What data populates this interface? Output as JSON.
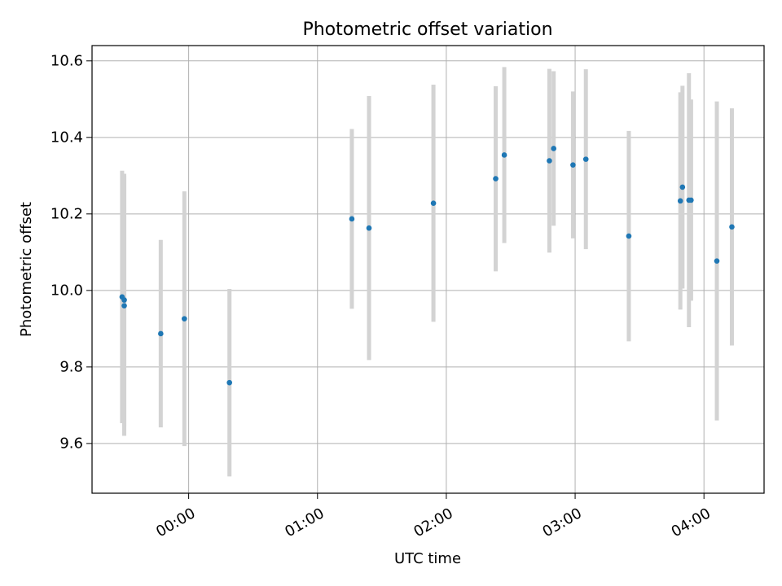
{
  "chart_data": {
    "type": "scatter",
    "title": "Photometric offset variation",
    "xlabel": "UTC time",
    "ylabel": "Photometric offset",
    "x_axis_kind": "time",
    "xlim": [
      "23:15",
      "04:28"
    ],
    "ylim": [
      9.47,
      10.64
    ],
    "xticks": [
      "00:00",
      "01:00",
      "02:00",
      "03:00",
      "04:00"
    ],
    "yticks": [
      "9.6",
      "9.8",
      "10.0",
      "10.2",
      "10.4",
      "10.6"
    ],
    "grid": true,
    "legend": "none",
    "point_color": "#1f77b4",
    "errorbar_color": "#d3d3d3",
    "series": [
      {
        "points": [
          {
            "x": "23:29",
            "y": 9.983,
            "yerr": 0.33
          },
          {
            "x": "23:30",
            "y": 9.975,
            "yerr": 0.33
          },
          {
            "x": "23:30",
            "y": 9.96,
            "yerr": 0.34
          },
          {
            "x": "23:47",
            "y": 9.887,
            "yerr": 0.245
          },
          {
            "x": "23:58",
            "y": 9.926,
            "yerr": 0.333
          },
          {
            "x": "00:19",
            "y": 9.759,
            "yerr": 0.245
          },
          {
            "x": "01:16",
            "y": 10.187,
            "yerr": 0.235
          },
          {
            "x": "01:24",
            "y": 10.163,
            "yerr": 0.345
          },
          {
            "x": "01:54",
            "y": 10.228,
            "yerr": 0.31
          },
          {
            "x": "02:23",
            "y": 10.292,
            "yerr": 0.242
          },
          {
            "x": "02:27",
            "y": 10.354,
            "yerr": 0.23
          },
          {
            "x": "02:48",
            "y": 10.339,
            "yerr": 0.24
          },
          {
            "x": "02:50",
            "y": 10.371,
            "yerr": 0.202
          },
          {
            "x": "02:59",
            "y": 10.328,
            "yerr": 0.192
          },
          {
            "x": "03:05",
            "y": 10.343,
            "yerr": 0.235
          },
          {
            "x": "03:25",
            "y": 10.142,
            "yerr": 0.275
          },
          {
            "x": "03:49",
            "y": 10.234,
            "yerr": 0.284
          },
          {
            "x": "03:50",
            "y": 10.27,
            "yerr": 0.265
          },
          {
            "x": "03:53",
            "y": 10.236,
            "yerr": 0.332
          },
          {
            "x": "03:54",
            "y": 10.236,
            "yerr": 0.263
          },
          {
            "x": "04:06",
            "y": 10.077,
            "yerr": 0.417
          },
          {
            "x": "04:13",
            "y": 10.166,
            "yerr": 0.31
          }
        ]
      }
    ]
  }
}
